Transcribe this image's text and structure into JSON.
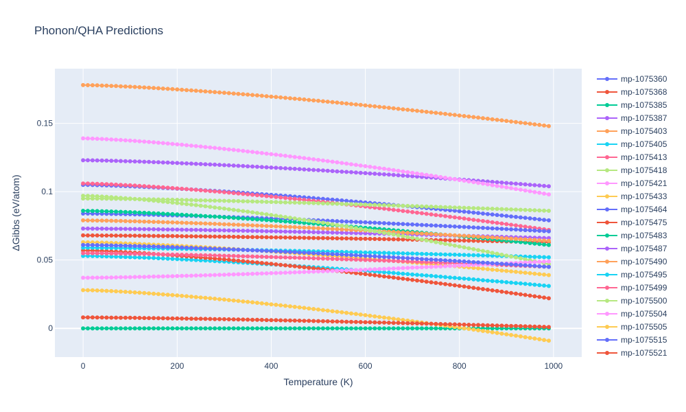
{
  "chart_data": {
    "type": "line",
    "title": "Phonon/QHA Predictions",
    "xlabel": "Temperature (K)",
    "ylabel": "ΔGibbs (eV/atom)",
    "xlim": [
      -60,
      1060
    ],
    "ylim": [
      -0.021,
      0.19
    ],
    "x_ticks": [
      0,
      200,
      400,
      600,
      800,
      1000
    ],
    "x_tick_labels": [
      "0",
      "200",
      "400",
      "600",
      "800",
      "1000"
    ],
    "y_ticks": [
      0,
      0.05,
      0.1,
      0.15
    ],
    "y_tick_labels": [
      "0",
      "0.05",
      "0.1",
      "0.15"
    ],
    "x_start": 0,
    "x_end": 990,
    "x_step": 10,
    "legend_position": "right",
    "series": [
      {
        "name": "mp-1075360",
        "color": "#636efa",
        "y_start": 0.105,
        "y_end": 0.079
      },
      {
        "name": "mp-1075368",
        "color": "#EF553B",
        "y_start": 0.068,
        "y_end": 0.063
      },
      {
        "name": "mp-1075385",
        "color": "#00cc96",
        "y_start": 0.0,
        "y_end": 0.0
      },
      {
        "name": "mp-1075387",
        "color": "#ab63fa",
        "y_start": 0.123,
        "y_end": 0.104
      },
      {
        "name": "mp-1075403",
        "color": "#FFA15A",
        "y_start": 0.178,
        "y_end": 0.148
      },
      {
        "name": "mp-1075405",
        "color": "#19d3f3",
        "y_start": 0.053,
        "y_end": 0.031
      },
      {
        "name": "mp-1075413",
        "color": "#FF6692",
        "y_start": 0.106,
        "y_end": 0.072
      },
      {
        "name": "mp-1075418",
        "color": "#B6E880",
        "y_start": 0.095,
        "y_end": 0.086
      },
      {
        "name": "mp-1075421",
        "color": "#FF97FF",
        "y_start": 0.139,
        "y_end": 0.098
      },
      {
        "name": "mp-1075433",
        "color": "#FECB52",
        "y_start": 0.063,
        "y_end": 0.039
      },
      {
        "name": "mp-1075464",
        "color": "#636efa",
        "y_start": 0.084,
        "y_end": 0.071
      },
      {
        "name": "mp-1075475",
        "color": "#EF553B",
        "y_start": 0.057,
        "y_end": 0.022
      },
      {
        "name": "mp-1075483",
        "color": "#00cc96",
        "y_start": 0.086,
        "y_end": 0.061
      },
      {
        "name": "mp-1075487",
        "color": "#ab63fa",
        "y_start": 0.073,
        "y_end": 0.066
      },
      {
        "name": "mp-1075490",
        "color": "#FFA15A",
        "y_start": 0.079,
        "y_end": 0.064
      },
      {
        "name": "mp-1075495",
        "color": "#19d3f3",
        "y_start": 0.059,
        "y_end": 0.052
      },
      {
        "name": "mp-1075499",
        "color": "#FF6692",
        "y_start": 0.055,
        "y_end": 0.045
      },
      {
        "name": "mp-1075500",
        "color": "#B6E880",
        "y_start": 0.097,
        "y_end": 0.047
      },
      {
        "name": "mp-1075504",
        "color": "#FF97FF",
        "y_start": 0.037,
        "y_end": 0.049
      },
      {
        "name": "mp-1075505",
        "color": "#FECB52",
        "y_start": 0.028,
        "y_end": -0.009
      },
      {
        "name": "mp-1075515",
        "color": "#636efa",
        "y_start": 0.061,
        "y_end": 0.045
      },
      {
        "name": "mp-1075521",
        "color": "#EF553B",
        "y_start": 0.008,
        "y_end": 0.001
      }
    ]
  }
}
